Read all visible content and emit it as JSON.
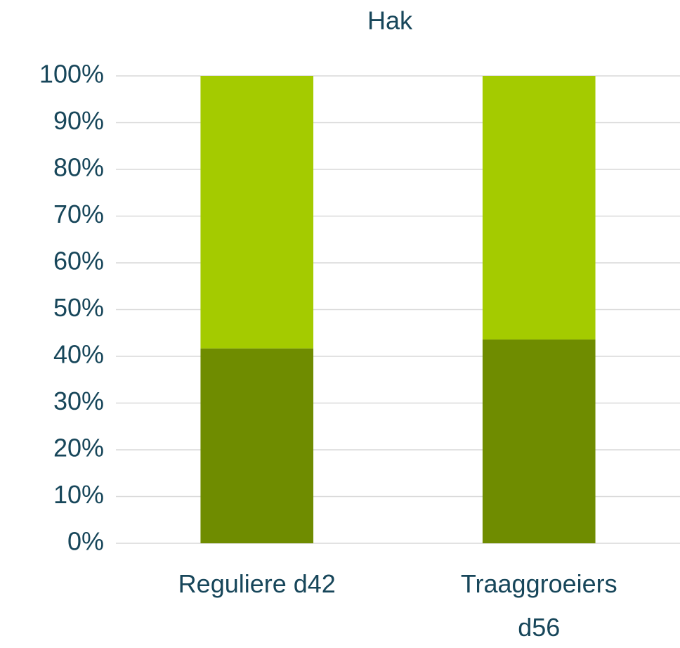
{
  "chart_data": {
    "type": "stacked_bar",
    "title": "Hak",
    "categories": [
      "Reguliere d42",
      "Traaggroeiers d56"
    ],
    "series": [
      {
        "color": "#6f8c00",
        "values": [
          41.7,
          43.6
        ]
      },
      {
        "color": "#a4cb00",
        "values": [
          58.3,
          56.4
        ]
      }
    ],
    "ylim": [
      0,
      100
    ],
    "yticks": [
      {
        "value": 0,
        "label": "0%"
      },
      {
        "value": 10,
        "label": "10%"
      },
      {
        "value": 20,
        "label": "20%"
      },
      {
        "value": 30,
        "label": "30%"
      },
      {
        "value": 40,
        "label": "40%"
      },
      {
        "value": 50,
        "label": "50%"
      },
      {
        "value": 60,
        "label": "60%"
      },
      {
        "value": 70,
        "label": "70%"
      },
      {
        "value": 80,
        "label": "80%"
      },
      {
        "value": 90,
        "label": "90%"
      },
      {
        "value": 100,
        "label": "100%"
      }
    ],
    "grid": true
  }
}
